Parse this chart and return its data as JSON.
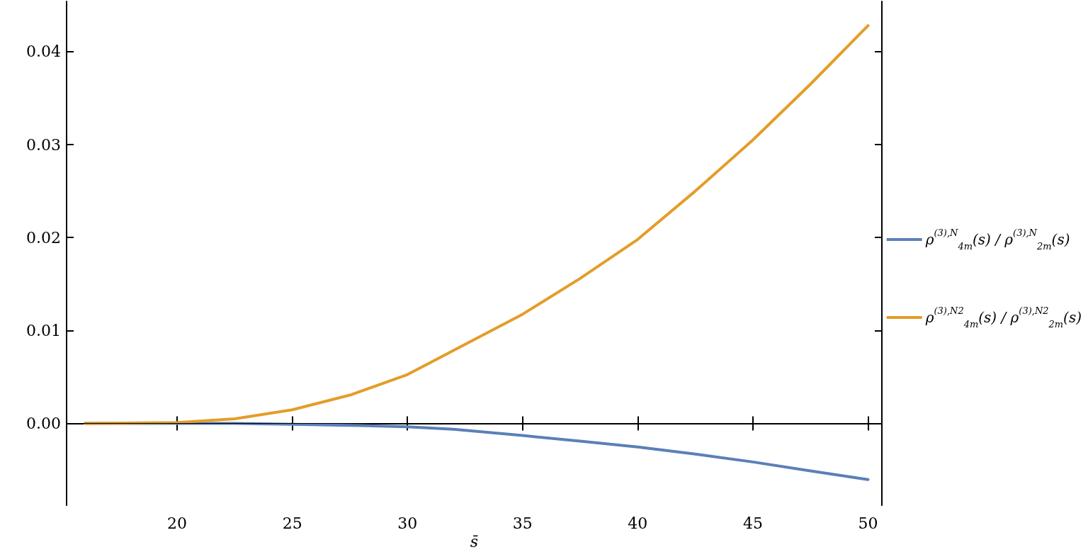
{
  "chart_data": {
    "type": "line",
    "xlabel": "s̄",
    "x": [
      16,
      20,
      22.5,
      25,
      27.5,
      30,
      32,
      35,
      37.5,
      40,
      42.5,
      45,
      47.5,
      50
    ],
    "series": [
      {
        "name": "ρ$^{(3),N}$$_{4m}$(s) / ρ$^{(3),N}$$_{2m}$(s)",
        "color": "#5b7fb8",
        "values": [
          0,
          0,
          0,
          -0.0001,
          -0.0002,
          -0.00035,
          -0.00063,
          -0.0013,
          -0.0019,
          -0.00253,
          -0.0033,
          -0.00414,
          -0.0051,
          -0.00604
        ]
      },
      {
        "name": "ρ$^{(3),N2}$$_{4m}$(s) / ρ$^{(3),N2}$$_{2m}$(s)",
        "color": "#e39d29",
        "values": [
          0,
          0.0001,
          0.0005,
          0.00147,
          0.00305,
          0.00526,
          0.00785,
          0.01175,
          0.0156,
          0.0198,
          0.025,
          0.0305,
          0.0365,
          0.0428
        ]
      }
    ],
    "xlim": [
      15.2,
      50.6
    ],
    "ylim": [
      -0.0088,
      0.0454
    ],
    "xticks": [
      20,
      25,
      30,
      35,
      40,
      45,
      50
    ],
    "yticks": [
      {
        "value": 0,
        "label": "0.00"
      },
      0.01,
      0.02,
      0.03,
      0.04
    ],
    "ref_lines": [
      {
        "axis": "y",
        "value": 0,
        "color": "#000000"
      }
    ],
    "legend": "right",
    "grid": false,
    "marker": "none",
    "line_style": "solid"
  }
}
